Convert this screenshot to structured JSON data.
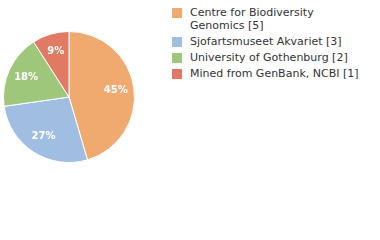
{
  "chart_data": {
    "type": "pie",
    "categories": [
      "Centre for Biodiversity Genomics [5]",
      "Sjofartsmuseet Akvariet [3]",
      "University of Gothenburg [2]",
      "Mined from GenBank, NCBI [1]"
    ],
    "values": [
      45,
      27,
      18,
      9
    ],
    "value_labels": [
      "45%",
      "27%",
      "18%",
      "9%"
    ],
    "colors": [
      "#f0aa70",
      "#a0bde2",
      "#9ec77c",
      "#e07a62"
    ],
    "data_labels": true,
    "legend": "right"
  }
}
